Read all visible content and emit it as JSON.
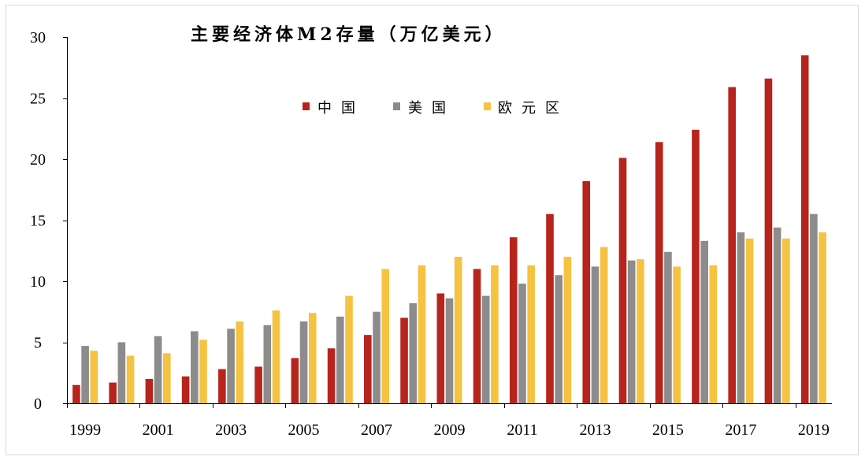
{
  "chart_data": {
    "type": "bar",
    "title": "主要经济体M2存量（万亿美元）",
    "x": [
      1999,
      2000,
      2001,
      2002,
      2003,
      2004,
      2005,
      2006,
      2007,
      2008,
      2009,
      2010,
      2011,
      2012,
      2013,
      2014,
      2015,
      2016,
      2017,
      2018,
      2019
    ],
    "x_tick_labels": [
      "1999",
      "2001",
      "2003",
      "2005",
      "2007",
      "2009",
      "2011",
      "2013",
      "2015",
      "2017",
      "2019"
    ],
    "ylim": [
      0,
      30
    ],
    "yticks": [
      0,
      5,
      10,
      15,
      20,
      25,
      30
    ],
    "grid": false,
    "legend": "top-center",
    "series": [
      {
        "name": "中国",
        "color": "#B7241C",
        "values": [
          1.5,
          1.7,
          2.0,
          2.2,
          2.8,
          3.0,
          3.7,
          4.5,
          5.6,
          7.0,
          9.0,
          11.0,
          13.6,
          15.5,
          18.2,
          20.1,
          21.4,
          22.4,
          25.9,
          26.6,
          28.5
        ]
      },
      {
        "name": "美国",
        "color": "#8C8C8C",
        "values": [
          4.7,
          5.0,
          5.5,
          5.9,
          6.1,
          6.4,
          6.7,
          7.1,
          7.5,
          8.2,
          8.6,
          8.8,
          9.8,
          10.5,
          11.2,
          11.7,
          12.4,
          13.3,
          14.0,
          14.4,
          15.5
        ]
      },
      {
        "name": "欧元区",
        "color": "#F5C242",
        "values": [
          4.3,
          3.9,
          4.1,
          5.2,
          6.7,
          7.6,
          7.4,
          8.8,
          11.0,
          11.3,
          12.0,
          11.3,
          11.3,
          12.0,
          12.8,
          11.8,
          11.2,
          11.3,
          13.5,
          13.5,
          14.0
        ]
      }
    ]
  }
}
